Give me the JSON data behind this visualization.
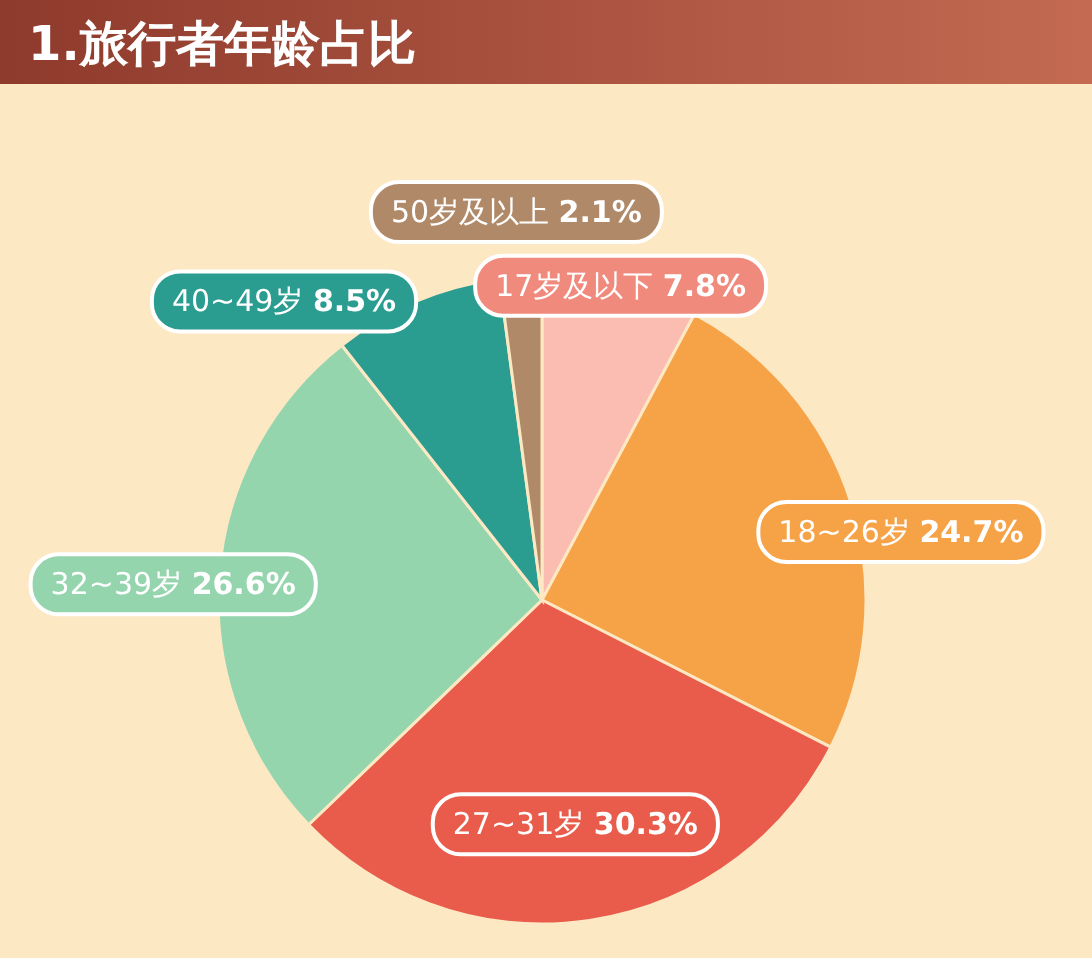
{
  "chart_data": {
    "type": "pie",
    "title": "1.旅行者年龄占比",
    "categories": [
      "17岁及以下",
      "18~26岁",
      "27~31岁",
      "32~39岁",
      "40~49岁",
      "50岁及以上"
    ],
    "values": [
      7.8,
      24.7,
      30.3,
      26.6,
      8.5,
      2.1
    ],
    "colors": [
      "#fbbcb2",
      "#f6a347",
      "#e95c4b",
      "#94d5ae",
      "#2a9d90",
      "#b08a68"
    ],
    "value_labels": [
      "7.8%",
      "24.7%",
      "30.3%",
      "26.6%",
      "8.5%",
      "2.1%"
    ]
  }
}
